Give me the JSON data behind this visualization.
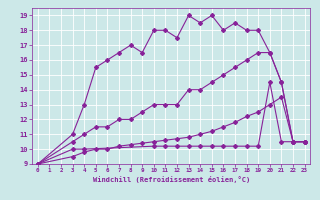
{
  "xlabel": "Windchill (Refroidissement éolien,°C)",
  "xlim": [
    -0.5,
    23.5
  ],
  "ylim": [
    9,
    19.5
  ],
  "xticks": [
    0,
    1,
    2,
    3,
    4,
    5,
    6,
    7,
    8,
    9,
    10,
    11,
    12,
    13,
    14,
    15,
    16,
    17,
    18,
    19,
    20,
    21,
    22,
    23
  ],
  "yticks": [
    9,
    10,
    11,
    12,
    13,
    14,
    15,
    16,
    17,
    18,
    19
  ],
  "background_color": "#cce8e8",
  "grid_color": "#ffffff",
  "line_color": "#882299",
  "series": [
    {
      "x": [
        0,
        3,
        4,
        5,
        6,
        7,
        8,
        9,
        10,
        11,
        12,
        13,
        14,
        15,
        16,
        17,
        18,
        19,
        20,
        21,
        22,
        23
      ],
      "y": [
        9,
        11,
        13,
        15.5,
        16,
        16.5,
        17,
        16.5,
        18,
        18,
        17.5,
        19,
        18.5,
        19,
        18,
        18.5,
        18,
        18,
        16.5,
        14.5,
        10.5,
        10.5
      ],
      "marker": "D",
      "markersize": 2,
      "linewidth": 0.8
    },
    {
      "x": [
        0,
        3,
        4,
        5,
        6,
        7,
        8,
        9,
        10,
        11,
        12,
        13,
        14,
        15,
        16,
        17,
        18,
        19,
        20,
        21,
        22,
        23
      ],
      "y": [
        9,
        10.5,
        11,
        11.5,
        11.5,
        12,
        12,
        12.5,
        13,
        13,
        13,
        14,
        14,
        14.5,
        15,
        15.5,
        16,
        16.5,
        16.5,
        14.5,
        10.5,
        10.5
      ],
      "marker": "D",
      "markersize": 2,
      "linewidth": 0.8
    },
    {
      "x": [
        0,
        3,
        4,
        5,
        6,
        7,
        8,
        9,
        10,
        11,
        12,
        13,
        14,
        15,
        16,
        17,
        18,
        19,
        20,
        21,
        22,
        23
      ],
      "y": [
        9,
        9.5,
        9.8,
        10,
        10,
        10.2,
        10.3,
        10.4,
        10.5,
        10.6,
        10.7,
        10.8,
        11,
        11.2,
        11.5,
        11.8,
        12.2,
        12.5,
        13,
        13.5,
        10.5,
        10.5
      ],
      "marker": "D",
      "markersize": 2,
      "linewidth": 0.8
    },
    {
      "x": [
        0,
        3,
        4,
        10,
        11,
        12,
        13,
        14,
        15,
        16,
        17,
        18,
        19,
        20,
        21,
        22,
        23
      ],
      "y": [
        9,
        10,
        10,
        10.2,
        10.2,
        10.2,
        10.2,
        10.2,
        10.2,
        10.2,
        10.2,
        10.2,
        10.2,
        14.5,
        10.5,
        10.5,
        10.5
      ],
      "marker": "D",
      "markersize": 2,
      "linewidth": 0.8
    }
  ]
}
